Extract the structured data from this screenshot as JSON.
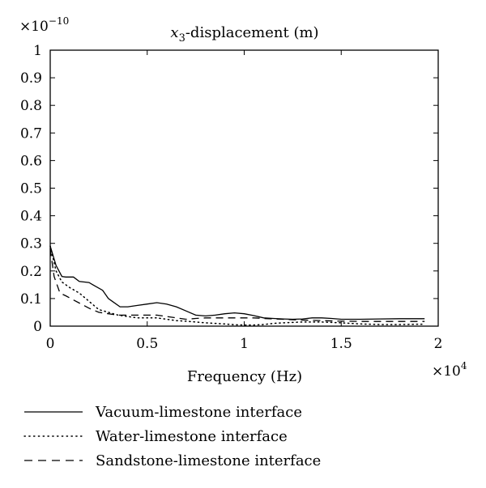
{
  "chart_data": {
    "type": "line",
    "title_prefix": "x",
    "title_sub": "3",
    "title_suffix": "-displacement (m)",
    "xlabel": "Frequency (Hz)",
    "x_multiplier_base": "×10",
    "x_multiplier_exp": "4",
    "y_multiplier_base": "×10",
    "y_multiplier_exp": "−10",
    "xlim": [
      0,
      2
    ],
    "ylim": [
      0,
      1
    ],
    "x_ticks": [
      0,
      0.5,
      1,
      1.5,
      2
    ],
    "x_tick_labels": [
      "0",
      "0.5",
      "1",
      "1.5",
      "2"
    ],
    "y_ticks": [
      0,
      0.1,
      0.2,
      0.3,
      0.4,
      0.5,
      0.6,
      0.7,
      0.8,
      0.9,
      1
    ],
    "y_tick_labels": [
      "0",
      "0.1",
      "0.2",
      "0.3",
      "0.4",
      "0.5",
      "0.6",
      "0.7",
      "0.8",
      "0.9",
      "1"
    ],
    "grid": false,
    "legend_position": "below",
    "series": [
      {
        "name": "Vacuum-limestone interface",
        "style": "solid",
        "color": "#000000",
        "x": [
          0,
          0.03,
          0.06,
          0.08,
          0.12,
          0.15,
          0.2,
          0.22,
          0.27,
          0.3,
          0.32,
          0.36,
          0.4,
          0.45,
          0.5,
          0.55,
          0.6,
          0.65,
          0.7,
          0.75,
          0.8,
          0.85,
          0.9,
          0.95,
          1.0,
          1.05,
          1.1,
          1.15,
          1.2,
          1.25,
          1.3,
          1.35,
          1.4,
          1.45,
          1.5,
          1.55,
          1.6,
          1.7,
          1.8,
          1.9,
          1.93
        ],
        "y": [
          0.29,
          0.22,
          0.18,
          0.178,
          0.178,
          0.162,
          0.158,
          0.15,
          0.13,
          0.1,
          0.09,
          0.07,
          0.07,
          0.075,
          0.08,
          0.085,
          0.08,
          0.07,
          0.055,
          0.04,
          0.037,
          0.04,
          0.045,
          0.048,
          0.045,
          0.038,
          0.03,
          0.028,
          0.026,
          0.025,
          0.026,
          0.03,
          0.03,
          0.028,
          0.025,
          0.025,
          0.025,
          0.026,
          0.027,
          0.027,
          0.027
        ]
      },
      {
        "name": "Water-limestone interface",
        "style": "dotted",
        "color": "#000000",
        "x": [
          0,
          0.03,
          0.06,
          0.1,
          0.15,
          0.2,
          0.25,
          0.3,
          0.35,
          0.4,
          0.45,
          0.5,
          0.55,
          0.6,
          0.65,
          0.7,
          0.75,
          0.8,
          0.85,
          0.9,
          0.95,
          1.0,
          1.05,
          1.1,
          1.15,
          1.2,
          1.3,
          1.4,
          1.5,
          1.6,
          1.7,
          1.8,
          1.9,
          1.93
        ],
        "y": [
          0.29,
          0.2,
          0.16,
          0.14,
          0.12,
          0.09,
          0.06,
          0.05,
          0.04,
          0.035,
          0.03,
          0.03,
          0.03,
          0.025,
          0.02,
          0.018,
          0.015,
          0.012,
          0.01,
          0.008,
          0.005,
          0.004,
          0.004,
          0.006,
          0.01,
          0.012,
          0.015,
          0.015,
          0.012,
          0.008,
          0.006,
          0.006,
          0.007,
          0.007
        ]
      },
      {
        "name": "Sandstone-limestone interface",
        "style": "dashed",
        "color": "#000000",
        "x": [
          0,
          0.02,
          0.05,
          0.08,
          0.12,
          0.16,
          0.2,
          0.25,
          0.3,
          0.35,
          0.4,
          0.45,
          0.5,
          0.55,
          0.6,
          0.65,
          0.7,
          0.75,
          0.8,
          0.85,
          0.9,
          0.95,
          1.0,
          1.05,
          1.1,
          1.2,
          1.3,
          1.4,
          1.5,
          1.6,
          1.7,
          1.8,
          1.9,
          1.93
        ],
        "y": [
          0.28,
          0.18,
          0.12,
          0.11,
          0.095,
          0.08,
          0.065,
          0.05,
          0.045,
          0.04,
          0.04,
          0.04,
          0.04,
          0.04,
          0.035,
          0.03,
          0.025,
          0.028,
          0.03,
          0.03,
          0.03,
          0.03,
          0.03,
          0.03,
          0.028,
          0.025,
          0.022,
          0.02,
          0.018,
          0.017,
          0.017,
          0.017,
          0.017,
          0.017
        ]
      }
    ]
  }
}
